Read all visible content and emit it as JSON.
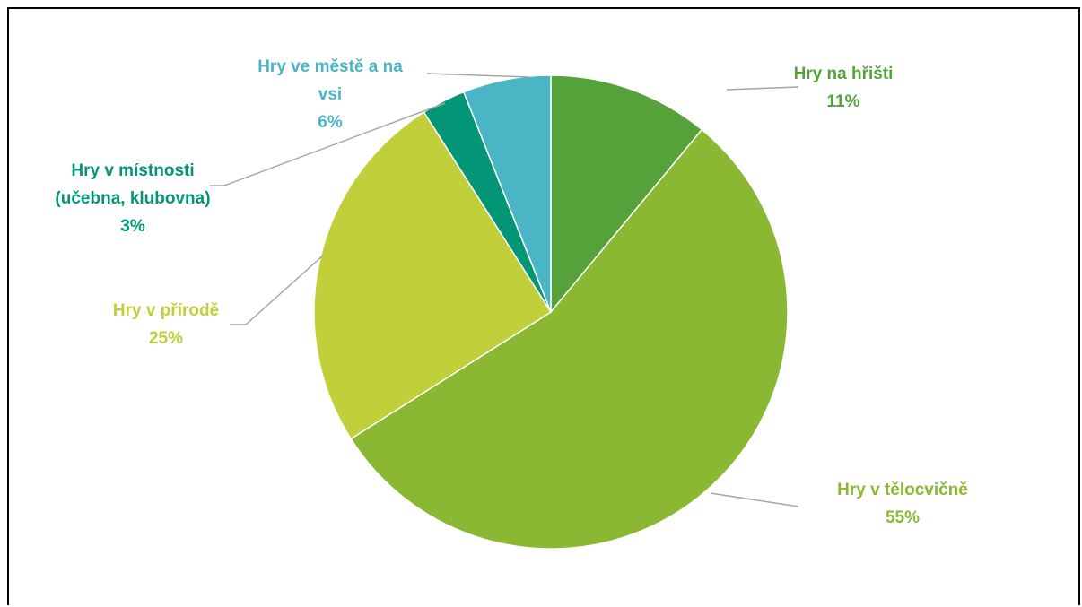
{
  "chart_data": {
    "type": "pie",
    "title": "",
    "slices": [
      {
        "label_lines": [
          "Hry na hřišti"
        ],
        "value": 11,
        "value_label": "11%",
        "color": "#55a23a"
      },
      {
        "label_lines": [
          "Hry v tělocvičně"
        ],
        "value": 55,
        "value_label": "55%",
        "color": "#8ab833"
      },
      {
        "label_lines": [
          "Hry v přírodě"
        ],
        "value": 25,
        "value_label": "25%",
        "color": "#c0cf3a"
      },
      {
        "label_lines": [
          "Hry v místnosti",
          "(učebna, klubovna)"
        ],
        "value": 3,
        "value_label": "3%",
        "color": "#029676"
      },
      {
        "label_lines": [
          "Hry ve městě a na",
          "vsi"
        ],
        "value": 6,
        "value_label": "6%",
        "color": "#4ab5c4"
      }
    ],
    "start_angle": "12 o'clock",
    "direction": "clockwise",
    "legend": "none",
    "data_labels": "outside with leader lines"
  },
  "colors": {
    "border": "#000000",
    "leader_line": "#a6a6a6",
    "background": "#ffffff"
  }
}
